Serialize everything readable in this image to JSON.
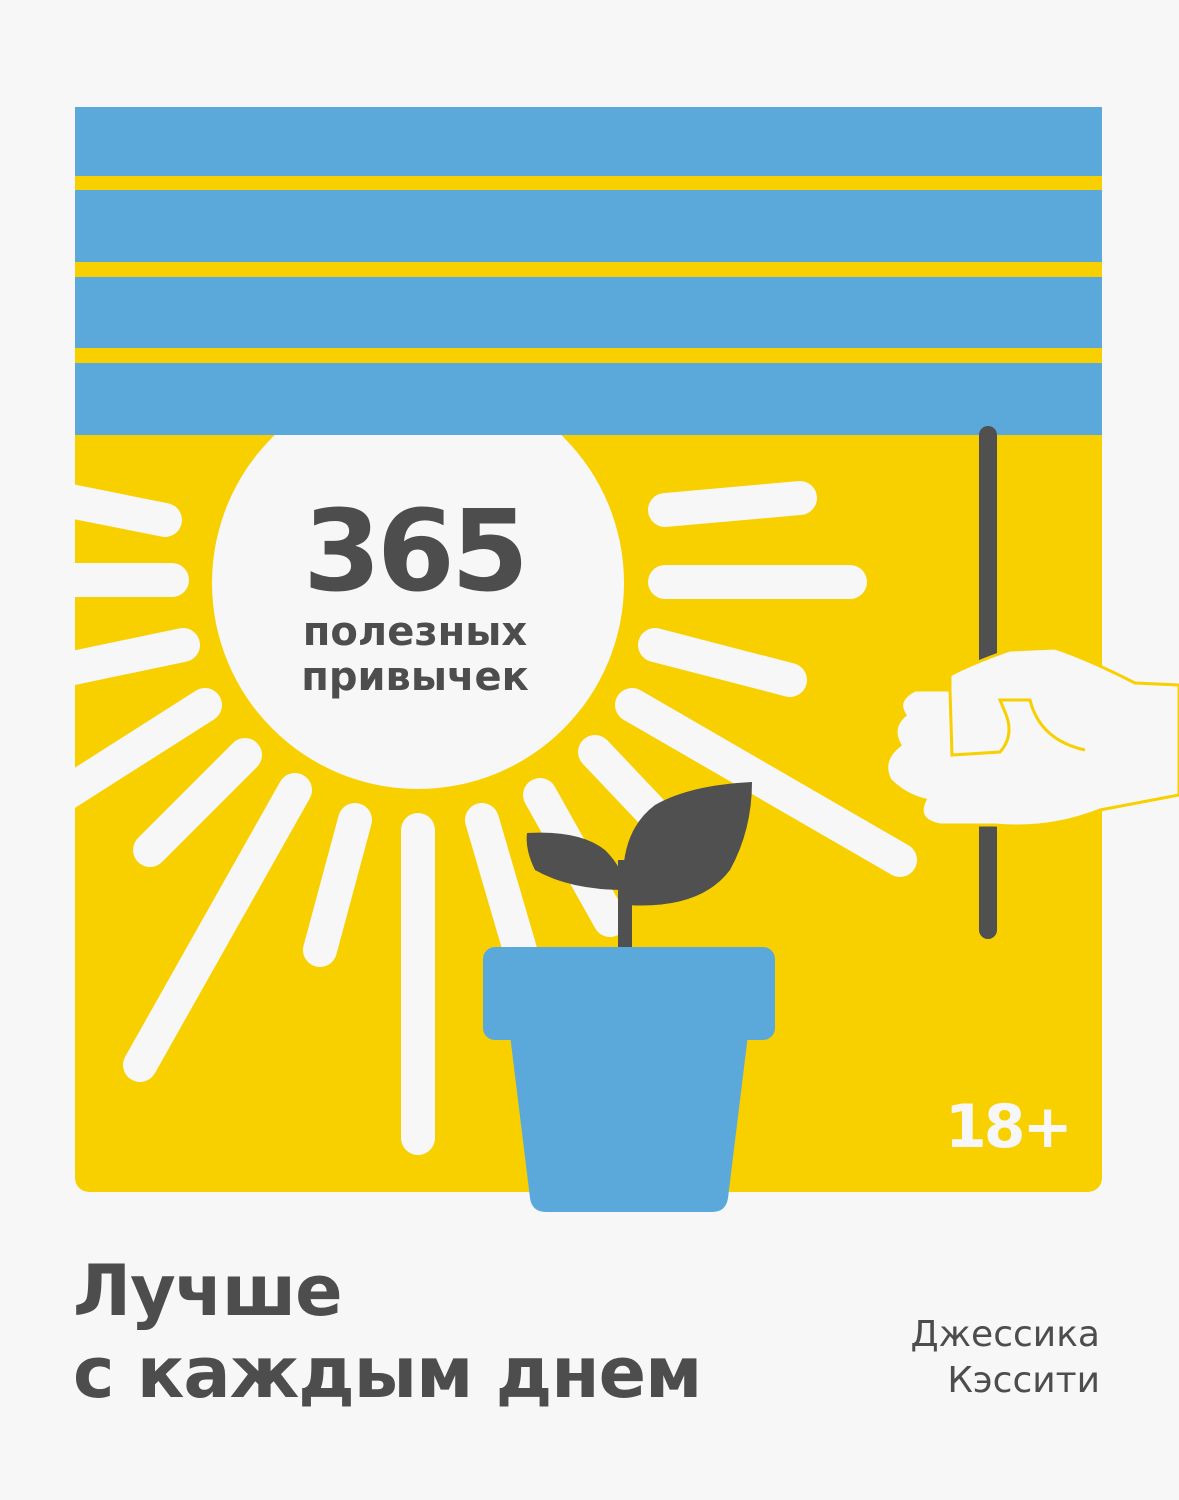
{
  "cover": {
    "number": "365",
    "subtitle_line1": "полезных",
    "subtitle_line2": "привычек",
    "age_rating": "18+",
    "title_line1": "Лучше",
    "title_line2": "с каждым днем",
    "author_line1": "Джессика",
    "author_line2": "Кэссити"
  },
  "colors": {
    "background": "#f7f7f7",
    "yellow": "#f8d000",
    "blue": "#5ba8db",
    "dark": "#505050",
    "white": "#f7f7f7"
  }
}
